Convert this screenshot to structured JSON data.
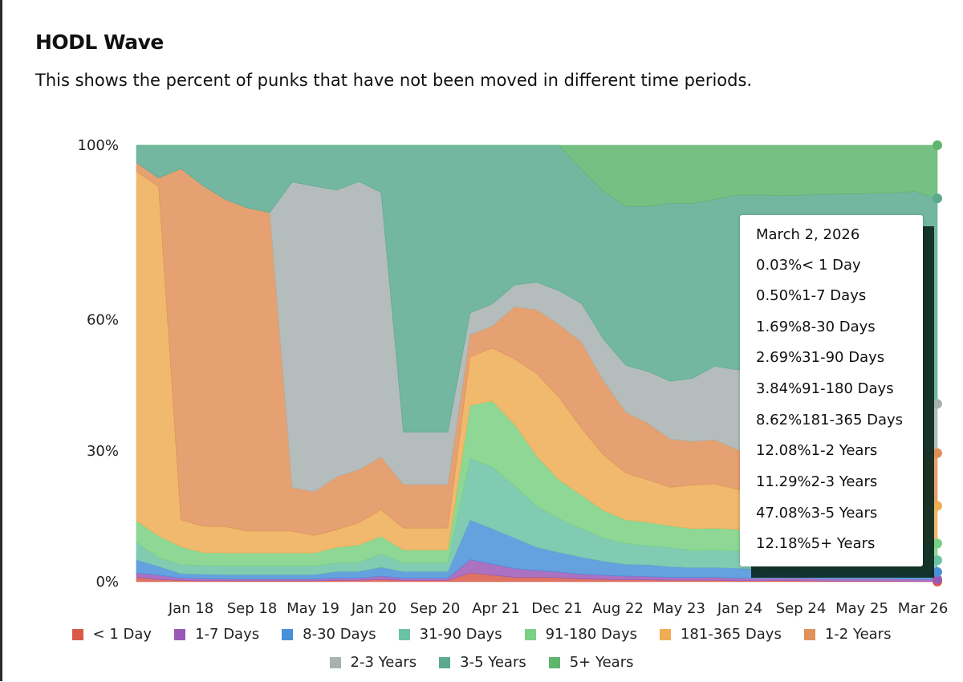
{
  "header": {
    "title": "HODL Wave",
    "subtitle": "This shows the percent of punks that have not been moved in different time periods."
  },
  "chart_data": {
    "type": "area",
    "stacked": true,
    "y_tick_labels": [
      "100%",
      "60%",
      "30%",
      "0%"
    ],
    "y_tick_values": [
      100,
      60,
      30,
      0
    ],
    "ylim": [
      0,
      100
    ],
    "x_tick_labels": [
      "Jan 18",
      "Sep 18",
      "May 19",
      "Jan 20",
      "Sep 20",
      "Apr 21",
      "Dec 21",
      "Aug 22",
      "May 23",
      "Jan 24",
      "Sep 24",
      "May 25",
      "Mar 26"
    ],
    "x": [
      0,
      1,
      2,
      3,
      4,
      5,
      6,
      7,
      8,
      9,
      10,
      11,
      12,
      13,
      14,
      15,
      16,
      17,
      18,
      19,
      20,
      21,
      22,
      23,
      24,
      25,
      26,
      27,
      28,
      29,
      30,
      31,
      32,
      33,
      34,
      35,
      36
    ],
    "xlim": [
      0,
      36
    ],
    "series": [
      {
        "name": "< 1 Day",
        "color": "#d95a48",
        "values": [
          1,
          0.5,
          0.3,
          0.2,
          0.2,
          0.2,
          0.2,
          0.2,
          0.2,
          0.3,
          0.3,
          0.5,
          0.3,
          0.3,
          0.3,
          2,
          1.5,
          1,
          1,
          0.8,
          0.6,
          0.5,
          0.4,
          0.4,
          0.3,
          0.3,
          0.3,
          0.2,
          0.2,
          0.2,
          0.2,
          0.1,
          0.1,
          0.1,
          0.1,
          0.05,
          0.03
        ]
      },
      {
        "name": "1-7 Days",
        "color": "#9b59b6",
        "values": [
          1,
          1,
          0.5,
          0.5,
          0.4,
          0.4,
          0.4,
          0.4,
          0.4,
          0.5,
          0.5,
          0.8,
          0.5,
          0.5,
          0.5,
          3,
          2.5,
          2,
          1.5,
          1.2,
          1,
          0.9,
          0.8,
          0.7,
          0.6,
          0.6,
          0.6,
          0.5,
          0.5,
          0.5,
          0.5,
          0.5,
          0.5,
          0.5,
          0.5,
          0.5,
          0.5
        ]
      },
      {
        "name": "8-30 Days",
        "color": "#4a8fd9",
        "values": [
          3,
          2,
          1,
          1,
          1,
          1,
          1,
          1,
          1,
          1.5,
          1.5,
          2,
          1.5,
          1.5,
          1.5,
          9,
          8,
          7,
          5,
          4,
          3.5,
          3,
          2.5,
          2.5,
          2.2,
          2,
          2,
          2,
          1.8,
          1.8,
          1.8,
          1.7,
          1.7,
          1.7,
          1.7,
          1.7,
          1.69
        ]
      },
      {
        "name": "31-90 Days",
        "color": "#6cc2a6",
        "values": [
          4,
          2,
          2,
          2,
          2,
          2,
          2,
          2,
          2,
          2,
          2,
          3,
          2,
          2,
          2,
          14,
          14,
          12,
          9,
          7,
          6,
          5,
          4.5,
          4,
          4,
          3.5,
          3.5,
          3.5,
          3.2,
          3.2,
          3,
          3,
          3,
          2.8,
          2.7,
          2.7,
          2.69
        ]
      },
      {
        "name": "91-180 Days",
        "color": "#7ad083",
        "values": [
          5,
          5,
          4,
          3,
          3,
          3,
          3,
          3,
          3,
          3.5,
          4,
          4,
          3,
          3,
          3,
          12,
          15,
          14,
          11,
          8,
          7,
          6,
          5,
          5,
          4.5,
          4.5,
          4.5,
          4.3,
          4,
          4,
          4,
          4,
          3.9,
          3.9,
          3.9,
          3.8,
          3.84
        ]
      },
      {
        "name": "181-365 Days",
        "color": "#efad55",
        "values": [
          80,
          80,
          6,
          6,
          6,
          5,
          5,
          5,
          4,
          4,
          5,
          6,
          5,
          5,
          5,
          11,
          12,
          15,
          18,
          17,
          14,
          12,
          10,
          9,
          8,
          9,
          9,
          8,
          8,
          8,
          8,
          9,
          9,
          8.8,
          8.7,
          8.6,
          8.62
        ]
      },
      {
        "name": "1-2 Years",
        "color": "#e09158",
        "values": [
          2,
          2,
          78,
          78,
          75,
          74,
          73,
          10,
          10,
          12,
          12,
          12,
          10,
          10,
          10,
          5,
          5,
          12,
          14,
          15,
          18,
          16,
          13,
          12,
          10,
          9,
          9,
          8,
          8,
          9,
          10,
          12,
          12,
          12.1,
          12.1,
          12.1,
          12.08
        ]
      },
      {
        "name": "2-3 Years",
        "color": "#a7b1b0",
        "values": [
          0,
          0,
          0,
          0,
          0,
          0,
          0,
          70,
          70,
          65,
          65,
          60,
          12,
          12,
          12,
          5,
          5,
          5,
          6,
          7,
          8,
          9,
          10,
          11,
          12,
          13,
          15,
          16,
          17,
          12,
          12,
          11,
          11,
          11.3,
          11.3,
          11.3,
          11.29
        ]
      },
      {
        "name": "3-5 Years",
        "color": "#5baa90",
        "values": [
          4,
          7.5,
          5.2,
          9.3,
          12.4,
          14.4,
          15.4,
          8.4,
          9.4,
          10.2,
          8.2,
          10.7,
          65.8,
          65.8,
          65.8,
          38,
          36,
          32,
          30,
          30,
          28,
          32,
          34,
          35,
          37,
          36,
          34,
          35,
          35,
          38,
          38,
          38,
          38.6,
          39.3,
          40.6,
          43.8,
          47.08
        ]
      },
      {
        "name": "5+ Years",
        "color": "#5fb56e",
        "values": [
          0,
          0,
          0,
          0,
          0,
          0,
          0,
          0,
          0,
          0,
          0,
          0,
          0,
          0,
          0,
          0,
          0,
          0,
          0,
          0,
          5,
          10,
          13,
          13,
          12,
          12,
          11,
          10,
          10,
          10,
          10,
          10,
          10,
          10,
          10,
          10,
          12.18
        ]
      }
    ]
  },
  "tooltip": {
    "date": "March 2, 2026",
    "lines": [
      "0.03%< 1 Day",
      "0.50%1-7 Days",
      "1.69%8-30 Days",
      "2.69%31-90 Days",
      "3.84%91-180 Days",
      "8.62%181-365 Days",
      "12.08%1-2 Years",
      "11.29%2-3 Years",
      "47.08%3-5 Years",
      "12.18%5+ Years"
    ]
  }
}
